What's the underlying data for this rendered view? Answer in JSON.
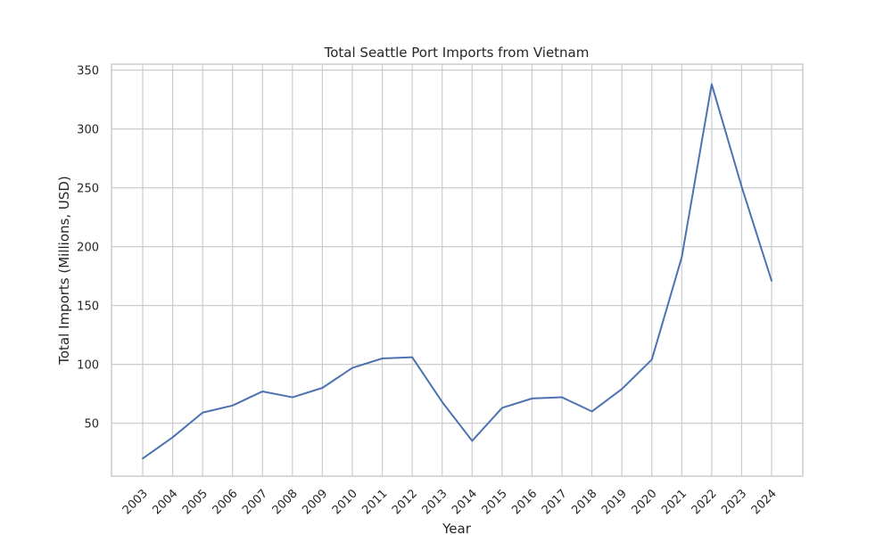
{
  "chart_data": {
    "type": "line",
    "title": "Total Seattle Port Imports from Vietnam",
    "xlabel": "Year",
    "ylabel": "Total Imports (Millions, USD)",
    "x": [
      "2003",
      "2004",
      "2005",
      "2006",
      "2007",
      "2008",
      "2009",
      "2010",
      "2011",
      "2012",
      "2013",
      "2014",
      "2015",
      "2016",
      "2017",
      "2018",
      "2019",
      "2020",
      "2021",
      "2022",
      "2023",
      "2024"
    ],
    "series": [
      {
        "values": [
          20,
          38,
          59,
          65,
          77,
          72,
          80,
          97,
          105,
          106,
          68,
          35,
          63,
          71,
          72,
          60,
          79,
          104,
          191,
          338,
          251,
          171
        ]
      }
    ],
    "ylim": [
      5,
      355
    ],
    "yticks": [
      50,
      100,
      150,
      200,
      250,
      300,
      350
    ],
    "grid": true,
    "x_tick_rotation": 45,
    "colors": {
      "line": "#4c72b0",
      "grid": "#cccccc",
      "text": "#262626"
    }
  }
}
